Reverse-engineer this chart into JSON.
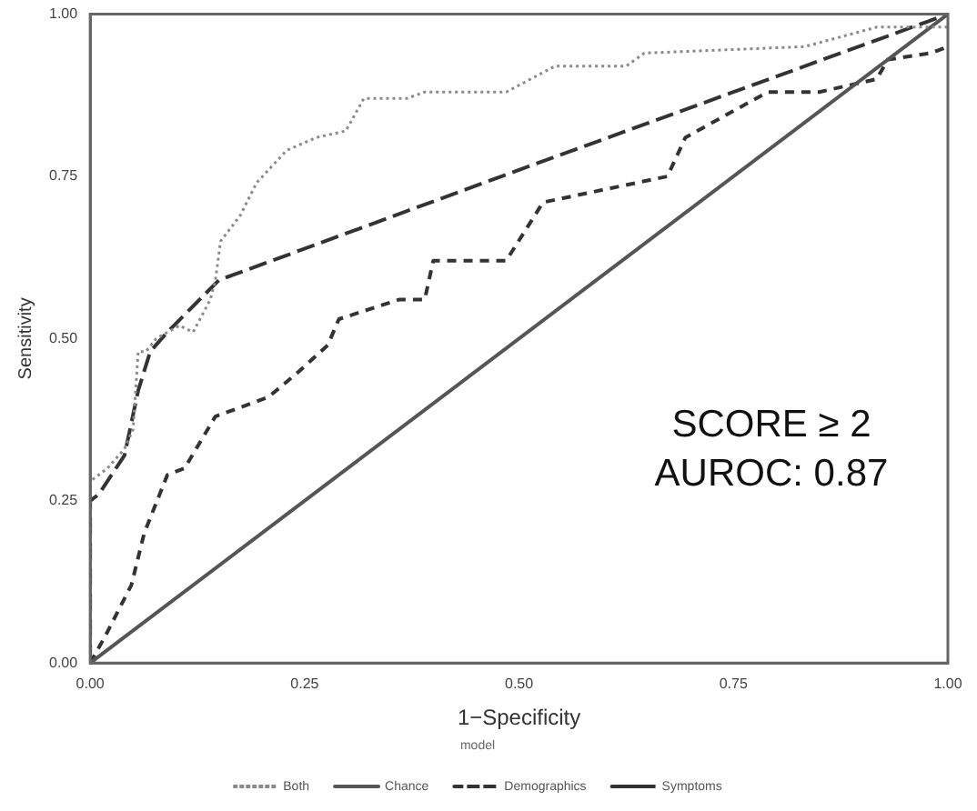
{
  "chart_data": {
    "type": "line",
    "xlabel": "1−Specificity",
    "ylabel": "Sensitivity",
    "legend_title": "model",
    "legend": "bottom",
    "grid": false,
    "marker": "none",
    "xlim": [
      0,
      1
    ],
    "ylim": [
      0,
      1
    ],
    "xticks": [
      {
        "value": 0,
        "label": "0.00"
      },
      {
        "value": 0.25,
        "label": "0.25"
      },
      {
        "value": 0.5,
        "label": "0.50"
      },
      {
        "value": 0.75,
        "label": "0.75"
      },
      {
        "value": 1,
        "label": "1.00"
      }
    ],
    "yticks": [
      {
        "value": 0,
        "label": "0.00"
      },
      {
        "value": 0.25,
        "label": "0.25"
      },
      {
        "value": 0.5,
        "label": "0.50"
      },
      {
        "value": 0.75,
        "label": "0.75"
      },
      {
        "value": 1,
        "label": "1.00"
      }
    ],
    "annotations": [
      "SCORE ≥ 2",
      "AUROC: 0.87"
    ],
    "series": [
      {
        "name": "Both",
        "color": "#8a8a8a",
        "line_style": "dotted",
        "x": [
          0,
          0,
          0.02,
          0.04,
          0.05,
          0.056,
          0.065,
          0.077,
          0.104,
          0.12,
          0.14,
          0.146,
          0.152,
          0.175,
          0.194,
          0.229,
          0.264,
          0.298,
          0.319,
          0.369,
          0.39,
          0.417,
          0.485,
          0.542,
          0.625,
          0.646,
          0.833,
          0.917,
          1
        ],
        "values": [
          0,
          0.28,
          0.3,
          0.33,
          0.36,
          0.48,
          0.48,
          0.5,
          0.52,
          0.51,
          0.56,
          0.59,
          0.65,
          0.69,
          0.74,
          0.79,
          0.81,
          0.82,
          0.87,
          0.87,
          0.88,
          0.88,
          0.88,
          0.92,
          0.92,
          0.94,
          0.95,
          0.98,
          0.98
        ]
      },
      {
        "name": "Chance",
        "color": "#555555",
        "line_style": "solid",
        "x": [
          0,
          1
        ],
        "values": [
          0,
          1
        ]
      },
      {
        "name": "Demographics",
        "color": "#333333",
        "line_style": "dashed",
        "x": [
          0,
          0.017,
          0.048,
          0.063,
          0.09,
          0.11,
          0.146,
          0.167,
          0.208,
          0.244,
          0.277,
          0.29,
          0.36,
          0.39,
          0.4,
          0.44,
          0.485,
          0.528,
          0.673,
          0.694,
          0.79,
          0.85,
          0.917,
          0.93,
          0.98,
          1
        ],
        "values": [
          0,
          0.04,
          0.12,
          0.2,
          0.29,
          0.3,
          0.38,
          0.39,
          0.41,
          0.45,
          0.49,
          0.53,
          0.56,
          0.56,
          0.62,
          0.62,
          0.62,
          0.71,
          0.75,
          0.81,
          0.88,
          0.88,
          0.9,
          0.93,
          0.94,
          0.95
        ]
      },
      {
        "name": "Symptoms",
        "color": "#333333",
        "line_style": "longdash",
        "x": [
          0,
          0,
          0.01,
          0.04,
          0.056,
          0.07,
          0.09,
          0.12,
          0.15,
          0.5,
          1
        ],
        "values": [
          0,
          0.25,
          0.26,
          0.32,
          0.42,
          0.48,
          0.51,
          0.55,
          0.59,
          0.76,
          1
        ]
      }
    ]
  }
}
